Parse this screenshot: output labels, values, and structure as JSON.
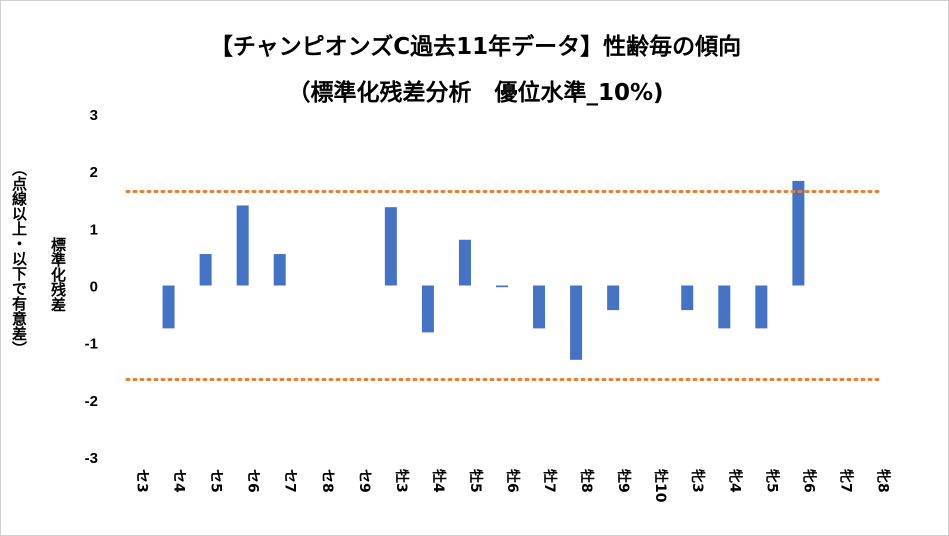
{
  "chart_data": {
    "type": "bar",
    "title": "【チャンピオンズC過去11年データ】性齢毎の傾向",
    "subtitle": "（標準化残差分析　優位水準_10%)",
    "ylabel": "標準化残差",
    "ylabel2": "（点線以上・以下で有意差）",
    "ylim": [
      -3,
      3
    ],
    "yticks": [
      "3",
      "2",
      "1",
      "0",
      "-1",
      "-2",
      "-3"
    ],
    "categories": [
      "セ3",
      "セ4",
      "セ5",
      "セ6",
      "セ7",
      "セ8",
      "セ9",
      "牡3",
      "牡4",
      "牡5",
      "牡6",
      "牡7",
      "牡8",
      "牡9",
      "牡10",
      "牝3",
      "牝4",
      "牝5",
      "牝6",
      "牝7",
      "牝8"
    ],
    "values": [
      0,
      -0.75,
      0.55,
      1.4,
      0.55,
      0,
      0,
      1.37,
      -0.82,
      0.8,
      -0.03,
      -0.75,
      -1.3,
      -0.43,
      0,
      -0.43,
      -0.75,
      -0.75,
      1.83,
      0,
      0
    ],
    "thresholds": [
      1.645,
      -1.645
    ],
    "bar_color": "#4472C4",
    "threshold_color": "#ED7D31",
    "grid": false
  }
}
